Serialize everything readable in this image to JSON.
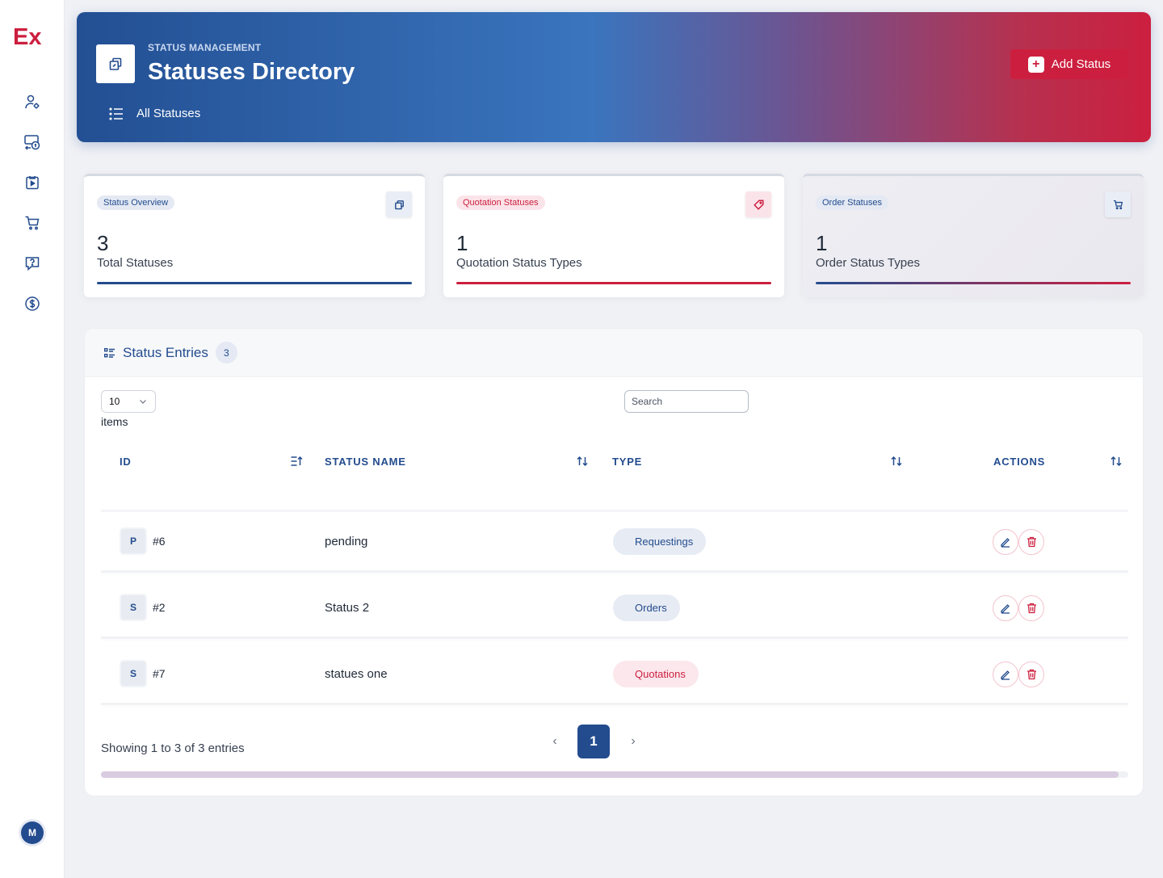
{
  "sidebar": {
    "logo_text": "Ex",
    "items": [
      {
        "icon": "user-gear-icon"
      },
      {
        "icon": "money-transfer-icon"
      },
      {
        "icon": "clipboard-play-icon"
      },
      {
        "icon": "cart-icon"
      },
      {
        "icon": "help-chat-icon"
      },
      {
        "icon": "dollar-circle-icon"
      }
    ],
    "avatar": "M"
  },
  "header": {
    "subtitle": "STATUS MANAGEMENT",
    "title": "Statuses Directory",
    "nav_label": "All Statuses",
    "add_button": "Add Status"
  },
  "stats": [
    {
      "badge": "Status Overview",
      "value": "3",
      "label": "Total Statuses",
      "icon": "copy-icon"
    },
    {
      "badge": "Quotation Statuses",
      "value": "1",
      "label": "Quotation Status Types",
      "icon": "tag-icon"
    },
    {
      "badge": "Order Statuses",
      "value": "1",
      "label": "Order Status Types",
      "icon": "cart-icon"
    }
  ],
  "table": {
    "title": "Status Entries",
    "count": "3",
    "page_size": "10",
    "items_label": "items",
    "search_placeholder": "Search",
    "columns": [
      "ID",
      "STATUS NAME",
      "TYPE",
      "ACTIONS"
    ],
    "rows": [
      {
        "letter": "P",
        "id": "#6",
        "name": "pending",
        "type": "Requestings",
        "type_color": "blue"
      },
      {
        "letter": "S",
        "id": "#2",
        "name": "Status 2",
        "type": "Orders",
        "type_color": "blue"
      },
      {
        "letter": "S",
        "id": "#7",
        "name": "statues one",
        "type": "Quotations",
        "type_color": "red"
      }
    ],
    "footer": "Showing 1 to 3 of 3 entries",
    "current_page": "1"
  },
  "colors": {
    "primary": "#234c8e",
    "accent": "#cc1f3f"
  }
}
